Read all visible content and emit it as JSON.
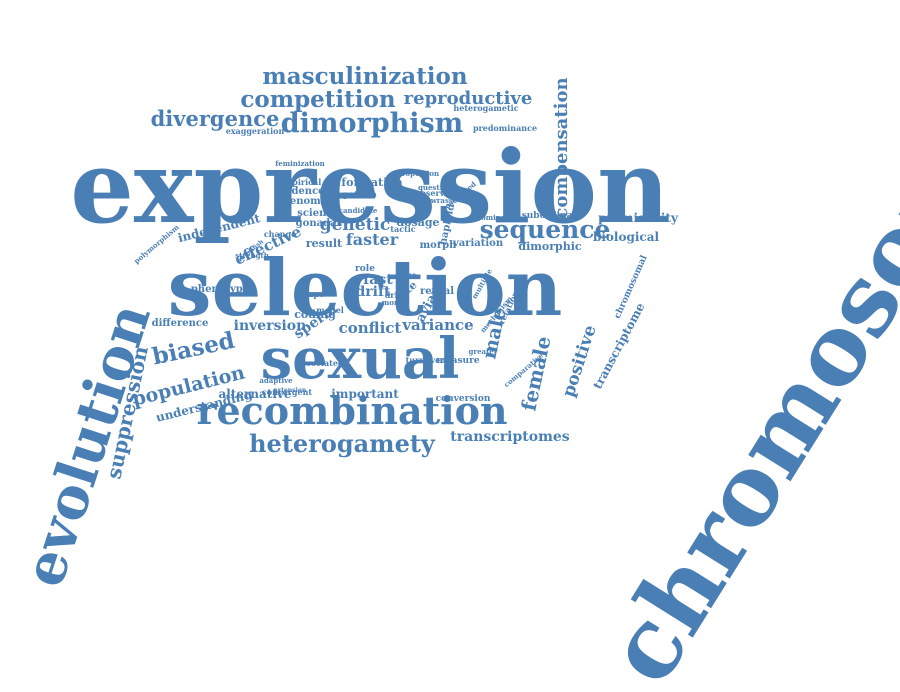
{
  "color": "#4a7fb5",
  "words": [
    {
      "text": "chromosome"
    },
    {
      "text": "expression"
    },
    {
      "text": "selection"
    },
    {
      "text": "evolution"
    },
    {
      "text": "sexual"
    },
    {
      "text": "recombination"
    },
    {
      "text": "dimorphism"
    },
    {
      "text": "heterogamety"
    },
    {
      "text": "masculinization"
    },
    {
      "text": "competition"
    },
    {
      "text": "reproductive"
    },
    {
      "text": "divergence"
    },
    {
      "text": "compensation"
    },
    {
      "text": "sequence"
    },
    {
      "text": "suppression"
    },
    {
      "text": "biased"
    },
    {
      "text": "population"
    },
    {
      "text": "female"
    },
    {
      "text": "male"
    },
    {
      "text": "positive"
    },
    {
      "text": "genetic"
    },
    {
      "text": "faster"
    },
    {
      "text": "conflict"
    },
    {
      "text": "variance"
    },
    {
      "text": "transcriptomes"
    },
    {
      "text": "understanding"
    },
    {
      "text": "alternative"
    },
    {
      "text": "important"
    },
    {
      "text": "transcriptome"
    },
    {
      "text": "inversion"
    },
    {
      "text": "sperm"
    },
    {
      "text": "effective"
    },
    {
      "text": "independent"
    },
    {
      "text": "promiscuity"
    },
    {
      "text": "biological"
    },
    {
      "text": "dimorphic"
    },
    {
      "text": "formation"
    },
    {
      "text": "dosage"
    },
    {
      "text": "result"
    },
    {
      "text": "difference"
    },
    {
      "text": "phenotype"
    },
    {
      "text": "coding"
    },
    {
      "text": "genome"
    },
    {
      "text": "evidence"
    },
    {
      "text": "science"
    },
    {
      "text": "exaggeration"
    },
    {
      "text": "predominance"
    },
    {
      "text": "heterogametic"
    },
    {
      "text": "gonadal"
    },
    {
      "text": "subordinate"
    },
    {
      "text": "variation"
    },
    {
      "text": "morph"
    },
    {
      "text": "avian"
    },
    {
      "text": "reveal"
    },
    {
      "text": "drift"
    },
    {
      "text": "fast"
    },
    {
      "text": "rate"
    },
    {
      "text": "shape"
    },
    {
      "text": "role"
    },
    {
      "text": "conversion"
    },
    {
      "text": "convergent"
    },
    {
      "text": "measure"
    },
    {
      "text": "turnover"
    },
    {
      "text": "relationship"
    },
    {
      "text": "chromosomal"
    },
    {
      "text": "associated"
    },
    {
      "text": "empirical"
    },
    {
      "text": "feminization"
    },
    {
      "text": "pattern"
    },
    {
      "text": "observed"
    },
    {
      "text": "question"
    },
    {
      "text": "tactic"
    },
    {
      "text": "drive"
    },
    {
      "text": "more"
    },
    {
      "text": "model"
    },
    {
      "text": "size"
    },
    {
      "text": "change"
    },
    {
      "text": "dominant"
    },
    {
      "text": "oscillated"
    },
    {
      "text": "polymorphism"
    },
    {
      "text": "wrasse"
    },
    {
      "text": "haploid"
    },
    {
      "text": "comparative"
    },
    {
      "text": "multiple"
    },
    {
      "text": "greater"
    },
    {
      "text": "mechanism"
    },
    {
      "text": "candidate"
    },
    {
      "text": "adaptive"
    },
    {
      "text": "zebrafish"
    },
    {
      "text": "proportion"
    },
    {
      "text": "strength"
    },
    {
      "text": "extension"
    }
  ]
}
